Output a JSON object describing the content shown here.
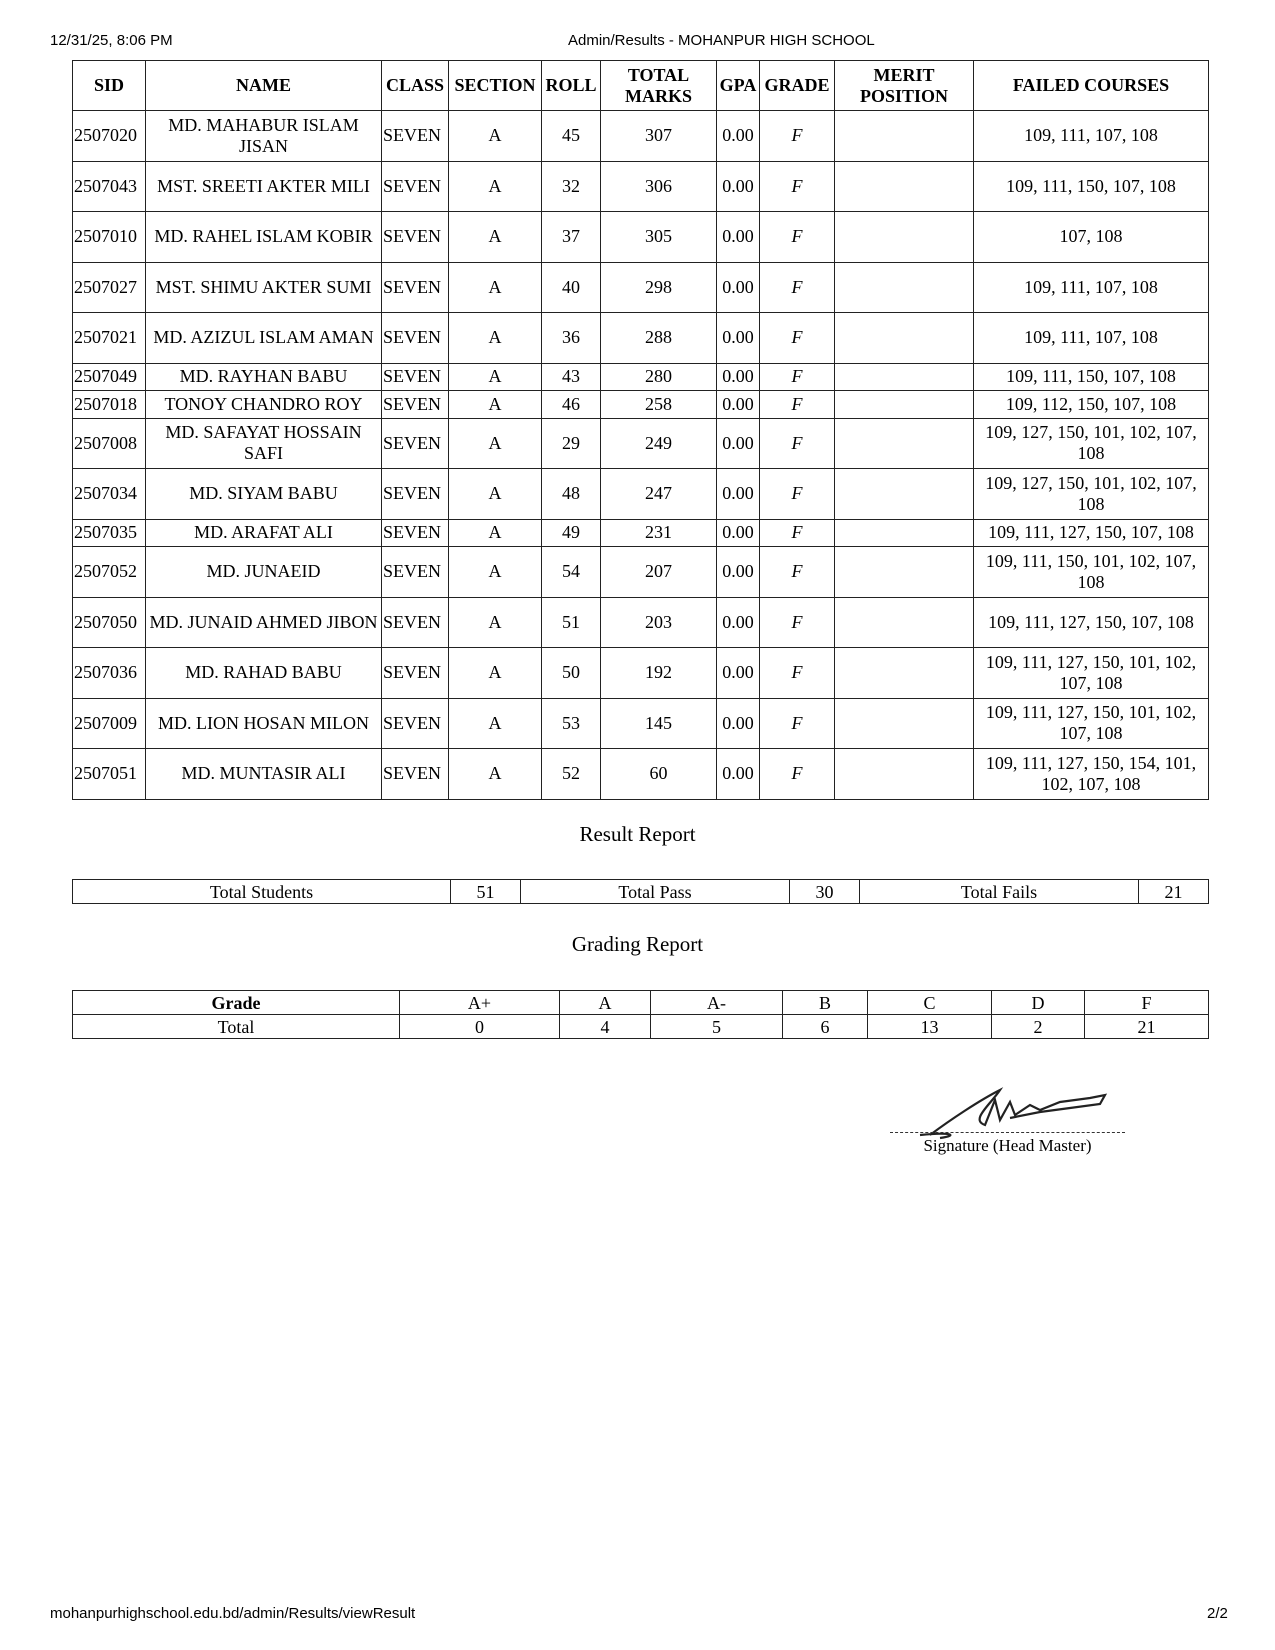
{
  "header": {
    "datetime": "12/31/25, 8:06 PM",
    "title": "Admin/Results - MOHANPUR HIGH SCHOOL"
  },
  "footer": {
    "url": "mohanpurhighschool.edu.bd/admin/Results/viewResult",
    "page": "2/2"
  },
  "table": {
    "columns": [
      "SID",
      "NAME",
      "CLASS",
      "SECTION",
      "ROLL",
      "TOTAL MARKS",
      "GPA",
      "GRADE",
      "MERIT POSITION",
      "FAILED COURSES"
    ],
    "rows": [
      [
        "2507020",
        "MD. MAHABUR ISLAM JISAN",
        "SEVEN",
        "A",
        "45",
        "307",
        "0.00",
        "F",
        "",
        "109, 111, 107, 108"
      ],
      [
        "2507043",
        "MST. SREETI AKTER MILI",
        "SEVEN",
        "A",
        "32",
        "306",
        "0.00",
        "F",
        "",
        "109, 111, 150, 107, 108"
      ],
      [
        "2507010",
        "MD. RAHEL ISLAM KOBIR",
        "SEVEN",
        "A",
        "37",
        "305",
        "0.00",
        "F",
        "",
        "107, 108"
      ],
      [
        "2507027",
        "MST. SHIMU AKTER SUMI",
        "SEVEN",
        "A",
        "40",
        "298",
        "0.00",
        "F",
        "",
        "109, 111, 107, 108"
      ],
      [
        "2507021",
        "MD. AZIZUL ISLAM AMAN",
        "SEVEN",
        "A",
        "36",
        "288",
        "0.00",
        "F",
        "",
        "109, 111, 107, 108"
      ],
      [
        "2507049",
        "MD. RAYHAN BABU",
        "SEVEN",
        "A",
        "43",
        "280",
        "0.00",
        "F",
        "",
        "109, 111, 150, 107, 108"
      ],
      [
        "2507018",
        "TONOY CHANDRO ROY",
        "SEVEN",
        "A",
        "46",
        "258",
        "0.00",
        "F",
        "",
        "109, 112, 150, 107, 108"
      ],
      [
        "2507008",
        "MD. SAFAYAT HOSSAIN SAFI",
        "SEVEN",
        "A",
        "29",
        "249",
        "0.00",
        "F",
        "",
        "109, 127, 150, 101, 102, 107, 108"
      ],
      [
        "2507034",
        "MD. SIYAM BABU",
        "SEVEN",
        "A",
        "48",
        "247",
        "0.00",
        "F",
        "",
        "109, 127, 150, 101, 102, 107, 108"
      ],
      [
        "2507035",
        "MD. ARAFAT ALI",
        "SEVEN",
        "A",
        "49",
        "231",
        "0.00",
        "F",
        "",
        "109, 111, 127, 150, 107, 108"
      ],
      [
        "2507052",
        "MD. JUNAEID",
        "SEVEN",
        "A",
        "54",
        "207",
        "0.00",
        "F",
        "",
        "109, 111, 150, 101, 102, 107, 108"
      ],
      [
        "2507050",
        "MD. JUNAID AHMED JIBON",
        "SEVEN",
        "A",
        "51",
        "203",
        "0.00",
        "F",
        "",
        "109, 111, 127, 150, 107, 108"
      ],
      [
        "2507036",
        "MD. RAHAD BABU",
        "SEVEN",
        "A",
        "50",
        "192",
        "0.00",
        "F",
        "",
        "109, 111, 127, 150, 101, 102, 107, 108"
      ],
      [
        "2507009",
        "MD. LION HOSAN MILON",
        "SEVEN",
        "A",
        "53",
        "145",
        "0.00",
        "F",
        "",
        "109, 111, 127, 150, 101, 102, 107, 108"
      ],
      [
        "2507051",
        "MD. MUNTASIR ALI",
        "SEVEN",
        "A",
        "52",
        "60",
        "0.00",
        "F",
        "",
        "109, 111, 127, 150, 154, 101, 102, 107, 108"
      ]
    ]
  },
  "result_report": {
    "title": "Result Report",
    "total_students_label": "Total Students",
    "total_students": "51",
    "total_pass_label": "Total Pass",
    "total_pass": "30",
    "total_fails_label": "Total Fails",
    "total_fails": "21"
  },
  "grading_report": {
    "title": "Grading Report",
    "header": [
      "Grade",
      "A+",
      "A",
      "A-",
      "B",
      "C",
      "D",
      "F"
    ],
    "totals": [
      "Total",
      "0",
      "4",
      "5",
      "6",
      "13",
      "2",
      "21"
    ]
  },
  "signature": {
    "label": "Signature (Head Master)"
  }
}
